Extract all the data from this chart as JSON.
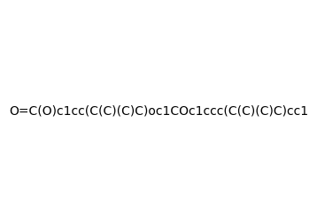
{
  "smiles": "O=C(O)c1cc(C(C)(C)C)oc1COc1ccc(C(C)(C)C)cc1",
  "image_size": 300,
  "background_color": "#f0f0f0",
  "title": ""
}
